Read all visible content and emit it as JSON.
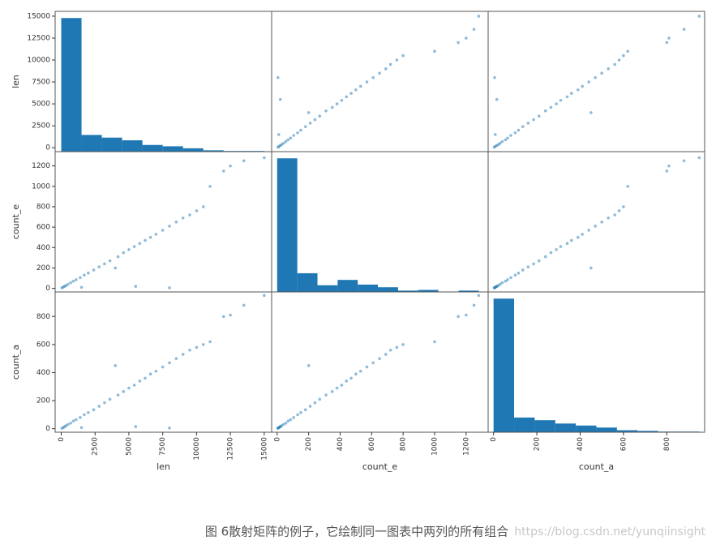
{
  "axes": [
    {
      "label": "len",
      "lim": [
        -450,
        15550
      ],
      "ticks": [
        0,
        2500,
        5000,
        7500,
        10000,
        12500,
        15000
      ],
      "values": [
        50,
        150,
        250,
        350,
        500,
        700,
        900,
        1100,
        1400,
        1700,
        2000,
        2400,
        2800,
        3200,
        3600,
        4000,
        4200,
        4600,
        5000,
        5400,
        5800,
        6200,
        6600,
        7000,
        7500,
        8000,
        8500,
        9000,
        9500,
        10000,
        10500,
        11000,
        12000,
        12500,
        13500,
        15000,
        8000,
        5500,
        1500
      ]
    },
    {
      "label": "count_e",
      "lim": [
        -35,
        1340
      ],
      "ticks": [
        0,
        200,
        400,
        600,
        800,
        1000,
        1200
      ],
      "values": [
        5,
        12,
        20,
        28,
        40,
        55,
        70,
        85,
        105,
        130,
        150,
        180,
        210,
        240,
        270,
        200,
        310,
        350,
        380,
        410,
        440,
        470,
        500,
        530,
        570,
        610,
        650,
        690,
        720,
        760,
        800,
        1000,
        1150,
        1200,
        1250,
        1280,
        5,
        20,
        10
      ]
    },
    {
      "label": "count_a",
      "lim": [
        -25,
        975
      ],
      "ticks": [
        0,
        200,
        400,
        600,
        800
      ],
      "values": [
        3,
        8,
        15,
        22,
        30,
        40,
        55,
        65,
        80,
        100,
        115,
        135,
        160,
        185,
        210,
        450,
        240,
        265,
        290,
        310,
        340,
        360,
        390,
        410,
        440,
        470,
        500,
        530,
        560,
        580,
        600,
        620,
        800,
        810,
        880,
        950,
        5,
        15,
        8
      ]
    }
  ],
  "chart_data": [
    {
      "type": "histogram",
      "color": "#1f77b4",
      "bins": [
        0,
        1500,
        3000,
        4500,
        6000,
        7500,
        9000,
        10500,
        12000,
        13500,
        15000
      ],
      "counts": [
        200,
        25,
        21,
        17,
        10,
        8,
        5,
        2,
        1,
        1
      ],
      "ylim": [
        0,
        210
      ]
    },
    {
      "type": "scatter",
      "color": "#1f77b4"
    },
    {
      "type": "scatter",
      "color": "#1f77b4"
    },
    {
      "type": "scatter",
      "color": "#1f77b4"
    },
    {
      "type": "histogram",
      "color": "#1f77b4",
      "bins": [
        0,
        128,
        256,
        384,
        512,
        640,
        768,
        896,
        1024,
        1152,
        1280
      ],
      "counts": [
        200,
        28,
        10,
        18,
        11,
        7,
        2,
        3,
        0,
        2
      ],
      "ylim": [
        0,
        210
      ]
    },
    {
      "type": "scatter",
      "color": "#1f77b4"
    },
    {
      "type": "scatter",
      "color": "#1f77b4"
    },
    {
      "type": "scatter",
      "color": "#1f77b4"
    },
    {
      "type": "histogram",
      "color": "#1f77b4",
      "bins": [
        0,
        95,
        190,
        285,
        380,
        475,
        570,
        665,
        760,
        855,
        950
      ],
      "counts": [
        200,
        22,
        18,
        13,
        10,
        7,
        3,
        2,
        1,
        1
      ],
      "ylim": [
        0,
        210
      ]
    }
  ],
  "caption": "图 6散射矩阵的例子，它绘制同一图表中两列的所有组合",
  "watermark": "https://blog.csdn.net/yunqiinsight"
}
